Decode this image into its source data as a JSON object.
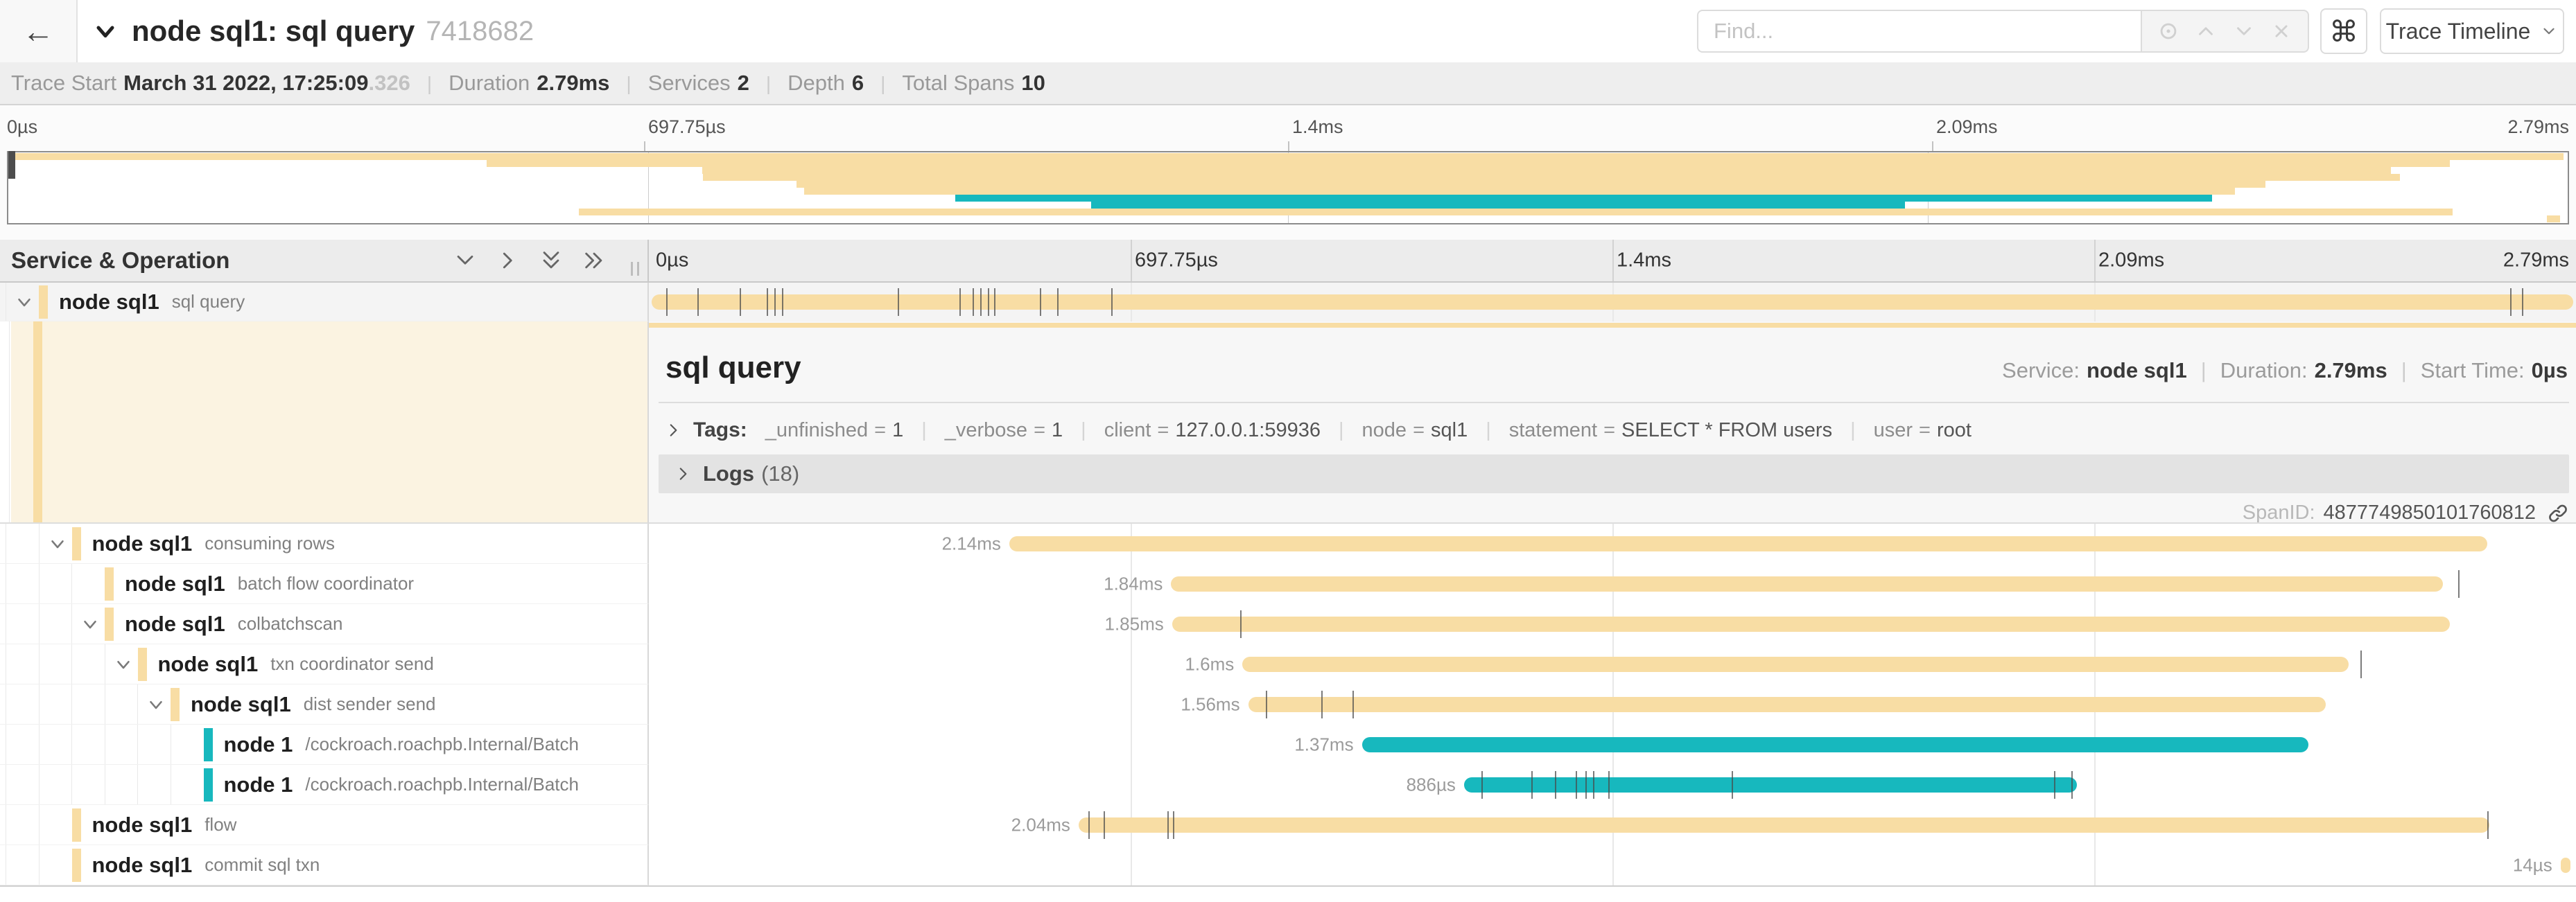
{
  "header": {
    "back_icon": "←",
    "title": "node sql1: sql query",
    "trace_id": "7418682",
    "find_placeholder": "Find...",
    "shortcut_key": "⌘",
    "view_dropdown": "Trace Timeline"
  },
  "summary": [
    {
      "label": "Trace Start",
      "value": "March 31 2022, 17:25:09",
      "suffix": ".326"
    },
    {
      "label": "Duration",
      "value": "2.79ms"
    },
    {
      "label": "Services",
      "value": "2"
    },
    {
      "label": "Depth",
      "value": "6"
    },
    {
      "label": "Total Spans",
      "value": "10"
    }
  ],
  "axis_ticks": [
    "0µs",
    "697.75µs",
    "1.4ms",
    "2.09ms",
    "2.79ms"
  ],
  "left_panel": {
    "header": "Service & Operation"
  },
  "colors": {
    "tan": "#f8dda4",
    "teal": "#17b8be"
  },
  "spans": [
    {
      "service": "node sql1",
      "operation": "sql query",
      "depth": 0,
      "chevron": true,
      "color": "tan",
      "start": 0.15,
      "width": 99.7,
      "duration": "2.79ms",
      "selected": true,
      "ticks": [
        0.9,
        2.5,
        4.7,
        6.1,
        6.5,
        6.9,
        12.9,
        16.1,
        16.8,
        17.2,
        17.6,
        17.9,
        20.3,
        21.2,
        24.0,
        96.6,
        97.2
      ]
    },
    {
      "service": "node sql1",
      "operation": "consuming rows",
      "depth": 1,
      "chevron": true,
      "color": "tan",
      "start": 18.7,
      "width": 76.7,
      "duration": "2.14ms",
      "ticks": []
    },
    {
      "service": "node sql1",
      "operation": "batch flow coordinator",
      "depth": 2,
      "chevron": false,
      "color": "tan",
      "start": 27.1,
      "width": 66.0,
      "duration": "1.84ms",
      "ticks": [
        93.9
      ]
    },
    {
      "service": "node sql1",
      "operation": "colbatchscan",
      "depth": 2,
      "chevron": true,
      "color": "tan",
      "start": 27.15,
      "width": 66.3,
      "duration": "1.85ms",
      "ticks": [
        30.7
      ]
    },
    {
      "service": "node sql1",
      "operation": "txn coordinator send",
      "depth": 3,
      "chevron": true,
      "color": "tan",
      "start": 30.8,
      "width": 57.4,
      "duration": "1.6ms",
      "ticks": [
        88.8
      ]
    },
    {
      "service": "node sql1",
      "operation": "dist sender send",
      "depth": 4,
      "chevron": true,
      "color": "tan",
      "start": 31.1,
      "width": 55.9,
      "duration": "1.56ms",
      "ticks": [
        32.0,
        34.9,
        36.5
      ]
    },
    {
      "service": "node 1",
      "operation": "/cockroach.roachpb.Internal/Batch",
      "depth": 5,
      "chevron": false,
      "color": "teal",
      "start": 37.0,
      "width": 49.1,
      "duration": "1.37ms",
      "ticks": []
    },
    {
      "service": "node 1",
      "operation": "/cockroach.roachpb.Internal/Batch",
      "depth": 5,
      "chevron": false,
      "color": "teal",
      "start": 42.3,
      "width": 31.8,
      "duration": "886µs",
      "ticks": [
        43.2,
        45.8,
        47.0,
        48.1,
        48.6,
        49.0,
        49.8,
        56.2,
        72.9,
        73.8
      ]
    },
    {
      "service": "node sql1",
      "operation": "flow",
      "depth": 1,
      "chevron": false,
      "color": "tan",
      "start": 22.3,
      "width": 73.2,
      "duration": "2.04ms",
      "ticks": [
        22.8,
        23.6,
        26.9,
        27.2,
        95.4
      ]
    },
    {
      "service": "node sql1",
      "operation": "commit sql txn",
      "depth": 1,
      "chevron": false,
      "color": "tan",
      "start": 99.2,
      "width": 0.5,
      "duration": "14µs",
      "ticks": []
    }
  ],
  "detail": {
    "title": "sql query",
    "meta": [
      {
        "label": "Service:",
        "value": "node sql1"
      },
      {
        "label": "Duration:",
        "value": "2.79ms"
      },
      {
        "label": "Start Time:",
        "value": "0µs"
      }
    ],
    "tags_label": "Tags:",
    "tags": [
      {
        "key": "_unfinished",
        "value": "1"
      },
      {
        "key": "_verbose",
        "value": "1"
      },
      {
        "key": "client",
        "value": "127.0.0.1:59936"
      },
      {
        "key": "node",
        "value": "sql1"
      },
      {
        "key": "statement",
        "value": "SELECT * FROM users"
      },
      {
        "key": "user",
        "value": "root"
      }
    ],
    "logs_label": "Logs",
    "logs_count": "(18)",
    "span_id_label": "SpanID:",
    "span_id": "4877749850101760812"
  }
}
